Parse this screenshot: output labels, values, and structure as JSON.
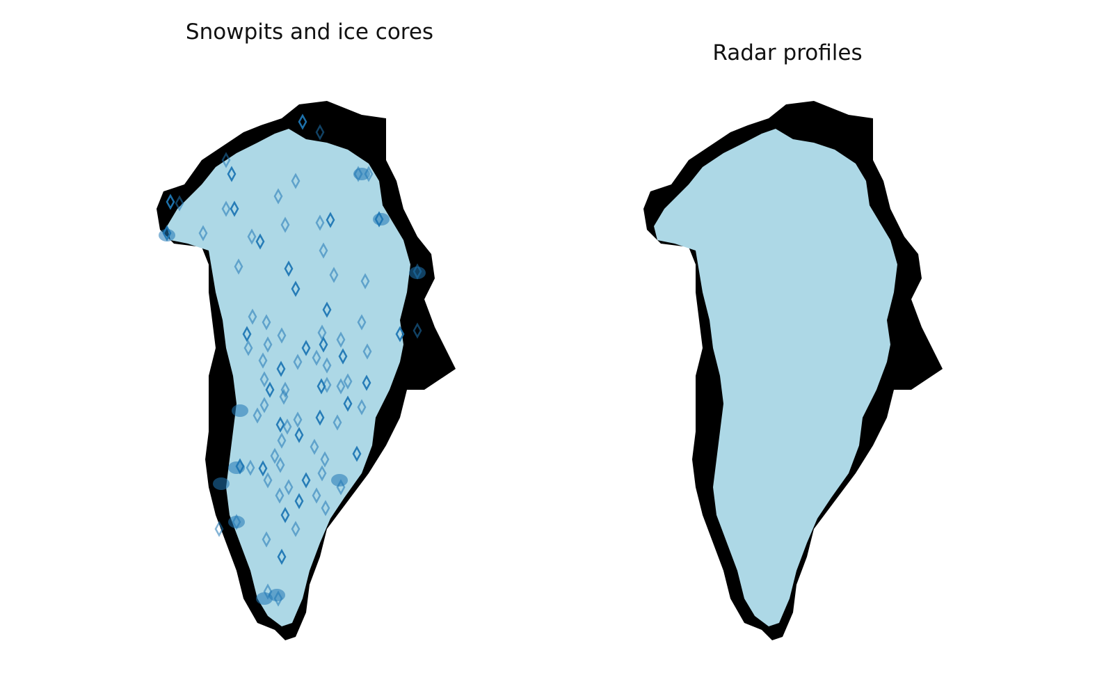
{
  "panels": [
    {
      "title": "Snowpits and ice cores",
      "marker": "diamond-outline",
      "colors": {
        "land": "#000000",
        "ice_sheet": "#add8e6",
        "markers": "#1f77b4"
      }
    },
    {
      "title": "Radar profiles",
      "marker": "dotted-track",
      "colors": {
        "land": "#000000",
        "ice_sheet": "#add8e6",
        "tracks": "#1f77b4"
      }
    }
  ]
}
